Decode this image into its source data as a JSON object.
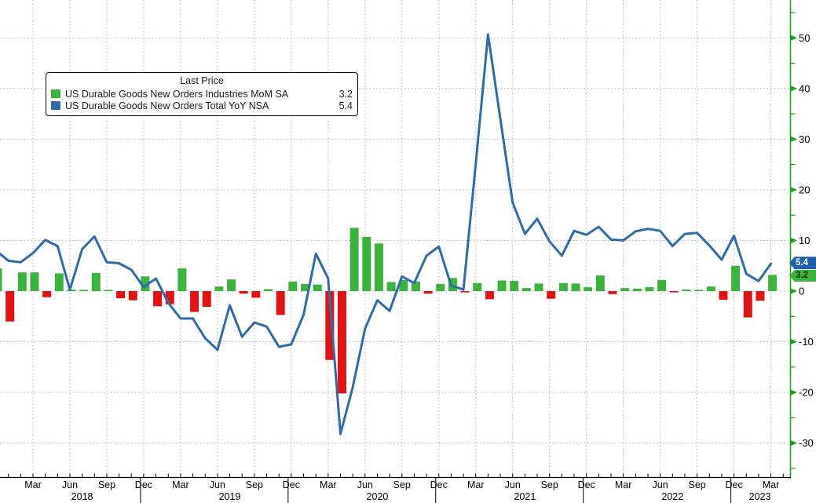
{
  "legend": {
    "title": "Last Price",
    "items": [
      {
        "label": "US Durable Goods New Orders Industries MoM SA",
        "value": "3.2",
        "color": "#3cb33c"
      },
      {
        "label": "US Durable Goods New Orders Total YoY NSA",
        "value": "5.4",
        "color": "#2f6ba8"
      }
    ]
  },
  "badges": [
    {
      "name": "yoy-last-price",
      "value": "5.4",
      "bg": "#1f5fae",
      "fg": "#ffffff"
    },
    {
      "name": "mom-last-price",
      "value": "3.2",
      "bg": "#3cb33c",
      "fg": "#083808"
    }
  ],
  "y_axis": {
    "color": "#17a317",
    "ticks": [
      50,
      40,
      30,
      20,
      10,
      0,
      -10,
      -20,
      -30
    ],
    "minor_ticks": [
      55,
      45,
      35,
      25,
      15,
      5,
      -5,
      -15,
      -25,
      -35
    ]
  },
  "x_axis": {
    "month_labels": {
      "03": "Mar",
      "06": "Jun",
      "09": "Sep",
      "12": "Dec"
    },
    "years": [
      {
        "label": "2018",
        "month_index": 7,
        "dx": 0
      },
      {
        "label": "2019",
        "month_index": 19,
        "dx": 0
      },
      {
        "label": "2020",
        "month_index": 31,
        "dx": 0
      },
      {
        "label": "2021",
        "month_index": 43,
        "dx": 0
      },
      {
        "label": "2022",
        "month_index": 55,
        "dx": 0
      },
      {
        "label": "2023",
        "month_index": 63,
        "dx": -14
      }
    ]
  },
  "chart_data": {
    "type": "combo",
    "title": "",
    "xlabel": "",
    "ylabel": "",
    "ylim": [
      -36.7,
      57.5
    ],
    "grid": "dotted",
    "legend_position": "top-left",
    "bar_positive_color": "#3cb33c",
    "bar_negative_color": "#e31212",
    "line_color": "#2f6ba8",
    "months": [
      "2017-12",
      "2018-01",
      "2018-02",
      "2018-03",
      "2018-04",
      "2018-05",
      "2018-06",
      "2018-07",
      "2018-08",
      "2018-09",
      "2018-10",
      "2018-11",
      "2018-12",
      "2019-01",
      "2019-02",
      "2019-03",
      "2019-04",
      "2019-05",
      "2019-06",
      "2019-07",
      "2019-08",
      "2019-09",
      "2019-10",
      "2019-11",
      "2019-12",
      "2020-01",
      "2020-02",
      "2020-03",
      "2020-04",
      "2020-05",
      "2020-06",
      "2020-07",
      "2020-08",
      "2020-09",
      "2020-10",
      "2020-11",
      "2020-12",
      "2021-01",
      "2021-02",
      "2021-03",
      "2021-04",
      "2021-05",
      "2021-06",
      "2021-07",
      "2021-08",
      "2021-09",
      "2021-10",
      "2021-11",
      "2021-12",
      "2022-01",
      "2022-02",
      "2022-03",
      "2022-04",
      "2022-05",
      "2022-06",
      "2022-07",
      "2022-08",
      "2022-09",
      "2022-10",
      "2022-11",
      "2022-12",
      "2023-01",
      "2023-02",
      "2023-03"
    ],
    "series": [
      {
        "name": "US Durable Goods New Orders Industries MoM SA",
        "type": "bar",
        "last": 3.2,
        "values": [
          4.5,
          -6.0,
          3.7,
          3.7,
          -1.2,
          3.5,
          0.3,
          0.2,
          3.6,
          0.2,
          -1.4,
          -1.8,
          2.9,
          -3.0,
          -2.6,
          4.5,
          -4.1,
          -3.1,
          0.9,
          2.3,
          -0.5,
          -1.3,
          0.4,
          -4.7,
          1.9,
          1.4,
          1.3,
          -13.6,
          -20.2,
          12.5,
          10.7,
          9.4,
          1.8,
          2.2,
          1.9,
          -0.5,
          1.4,
          2.6,
          -0.1,
          1.6,
          -1.6,
          2.1,
          2.0,
          0.6,
          1.5,
          -1.5,
          1.6,
          1.5,
          0.8,
          3.1,
          -0.6,
          0.6,
          0.5,
          0.8,
          2.2,
          -0.1,
          0.3,
          0.2,
          0.9,
          -1.7,
          5.0,
          -5.2,
          -1.9,
          3.2
        ]
      },
      {
        "name": "US Durable Goods New Orders Total YoY NSA",
        "type": "line",
        "last": 5.4,
        "values": [
          8.0,
          6.0,
          5.7,
          7.5,
          10.1,
          8.9,
          0.3,
          8.3,
          10.8,
          5.7,
          5.5,
          4.2,
          0.8,
          2.5,
          -2.3,
          -5.4,
          -5.4,
          -9.3,
          -11.6,
          -2.8,
          -9.0,
          -6.2,
          -7.0,
          -11.0,
          -10.5,
          -4.7,
          7.4,
          2.5,
          -28.2,
          -19.0,
          -7.4,
          -1.8,
          -3.9,
          2.9,
          1.6,
          7.0,
          8.8,
          1.1,
          0.3,
          25.0,
          50.7,
          34.0,
          17.5,
          11.3,
          14.3,
          9.8,
          7.0,
          11.9,
          11.1,
          12.7,
          10.2,
          10.0,
          11.8,
          12.3,
          11.9,
          8.9,
          11.3,
          11.5,
          9.0,
          6.2,
          10.9,
          3.4,
          2.0,
          5.4
        ]
      }
    ]
  }
}
